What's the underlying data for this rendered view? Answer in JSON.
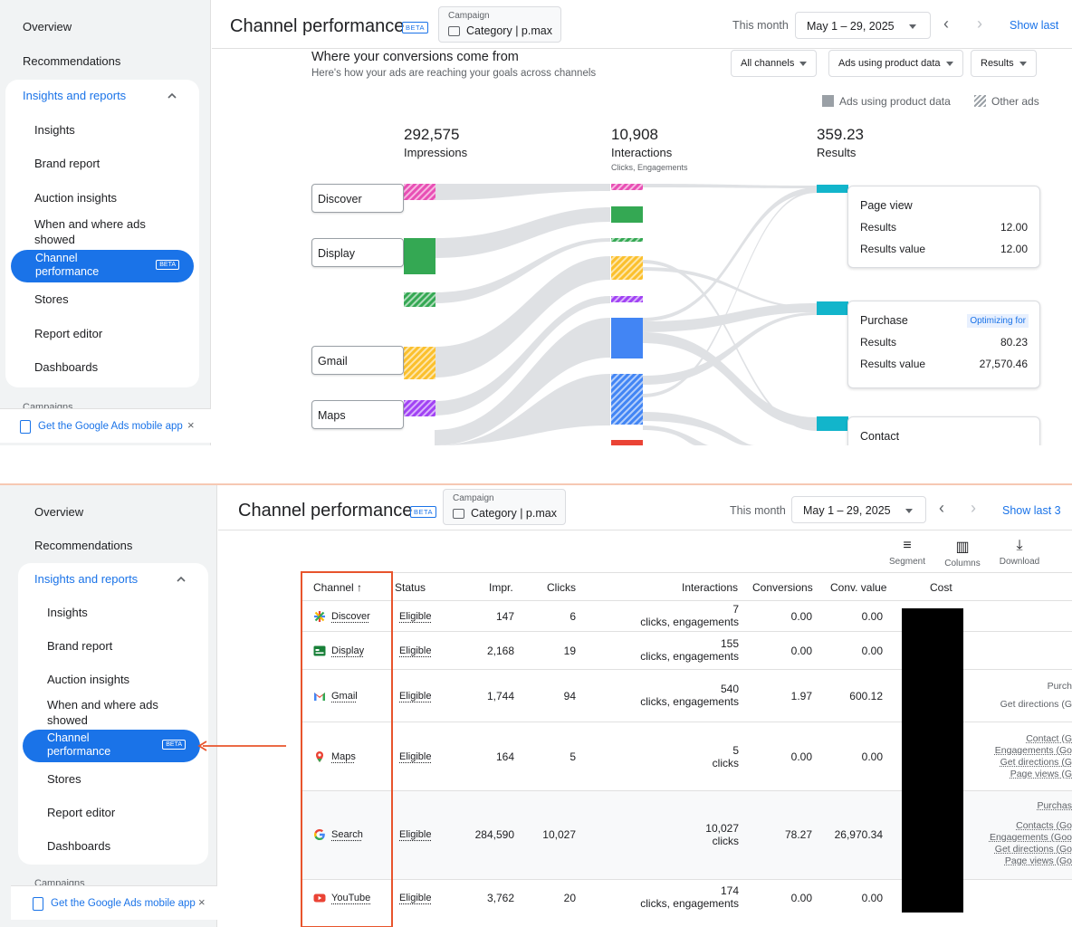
{
  "sidebar": {
    "overview": "Overview",
    "recommendations": "Recommendations",
    "insights_reports": "Insights and reports",
    "items": [
      "Insights",
      "Brand report",
      "Auction insights",
      "When and where ads showed",
      "Stores",
      "Report editor",
      "Dashboards"
    ],
    "active": "Channel performance",
    "active_badge": "BETA",
    "campaigns": "Campaigns",
    "banner": "Get the Google Ads mobile app",
    "banner_close": "×"
  },
  "header": {
    "title": "Channel performance",
    "beta": "BETA",
    "campaign_label": "Campaign",
    "campaign_value": "Category | p.max",
    "period_label": "This month",
    "date_range": "May 1 – 29, 2025",
    "prev": "‹",
    "next": "›",
    "show_last_1": "Show last",
    "show_last_2": "Show last 3"
  },
  "flow": {
    "heading": "Where your conversions come from",
    "subheading": "Here's how your ads are reaching your goals across channels",
    "filters": [
      "All channels",
      "Ads using product data",
      "Results"
    ],
    "legend": [
      "Ads using product data",
      "Other ads"
    ],
    "impressions_value": "292,575",
    "impressions_label": "Impressions",
    "interactions_value": "10,908",
    "interactions_label": "Interactions",
    "interactions_sub": "Clicks, Engagements",
    "results_value": "359.23",
    "results_label": "Results",
    "sources": [
      "Discover",
      "Display",
      "Gmail",
      "Maps"
    ],
    "outcomes": [
      {
        "title": "Page view",
        "badge": "",
        "results_label": "Results",
        "results": "12.00",
        "value_label": "Results value",
        "value": "12.00"
      },
      {
        "title": "Purchase",
        "badge": "Optimizing for",
        "results_label": "Results",
        "results": "80.23",
        "value_label": "Results value",
        "value": "27,570.46"
      },
      {
        "title": "Contact",
        "badge": "",
        "results_label": "",
        "results": "",
        "value_label": "",
        "value": ""
      }
    ],
    "colors": {
      "discover": "#e84fb5",
      "display": "#34a853",
      "gmail": "#fbc02d",
      "maps": "#a142f4",
      "search": "#4285f4",
      "youtube": "#ea4335",
      "results": "#12b5cb",
      "flow": "#dadce0"
    }
  },
  "table": {
    "tools": [
      {
        "icon": "≡",
        "label": "Segment"
      },
      {
        "icon": "▥",
        "label": "Columns"
      },
      {
        "icon": "⤓",
        "label": "Download"
      }
    ],
    "columns": [
      "Channel ↑",
      "Status",
      "Impr.",
      "Clicks",
      "Interactions",
      "Conversions",
      "Conv. value",
      "Cost"
    ],
    "rows": [
      {
        "channel": "Discover",
        "status": "Eligible",
        "impr": "147",
        "clicks": "6",
        "inter_n": "7",
        "inter_t": "clicks, engagements",
        "conv": "0.00",
        "value": "0.00",
        "extra": []
      },
      {
        "channel": "Display",
        "status": "Eligible",
        "impr": "2,168",
        "clicks": "19",
        "inter_n": "155",
        "inter_t": "clicks, engagements",
        "conv": "0.00",
        "value": "0.00",
        "extra": []
      },
      {
        "channel": "Gmail",
        "status": "Eligible",
        "impr": "1,744",
        "clicks": "94",
        "inter_n": "540",
        "inter_t": "clicks, engagements",
        "conv": "1.97",
        "value": "600.12",
        "extra": [
          "Purch",
          "Get directions (G"
        ]
      },
      {
        "channel": "Maps",
        "status": "Eligible",
        "impr": "164",
        "clicks": "5",
        "inter_n": "5",
        "inter_t": "clicks",
        "conv": "0.00",
        "value": "0.00",
        "extra": [
          "Contact (G",
          "Engagements (Go",
          "Get directions (G",
          "Page views (G"
        ]
      },
      {
        "channel": "Search",
        "status": "Eligible",
        "impr": "284,590",
        "clicks": "10,027",
        "inter_n": "10,027",
        "inter_t": "clicks",
        "conv": "78.27",
        "value": "26,970.34",
        "extra": [
          "Purchas",
          "Contacts (Go",
          "Engagements (Goo",
          "Get directions (Go",
          "Page views (Go"
        ]
      },
      {
        "channel": "YouTube",
        "status": "Eligible",
        "impr": "3,762",
        "clicks": "20",
        "inter_n": "174",
        "inter_t": "clicks, engagements",
        "conv": "0.00",
        "value": "0.00",
        "extra": []
      }
    ]
  }
}
